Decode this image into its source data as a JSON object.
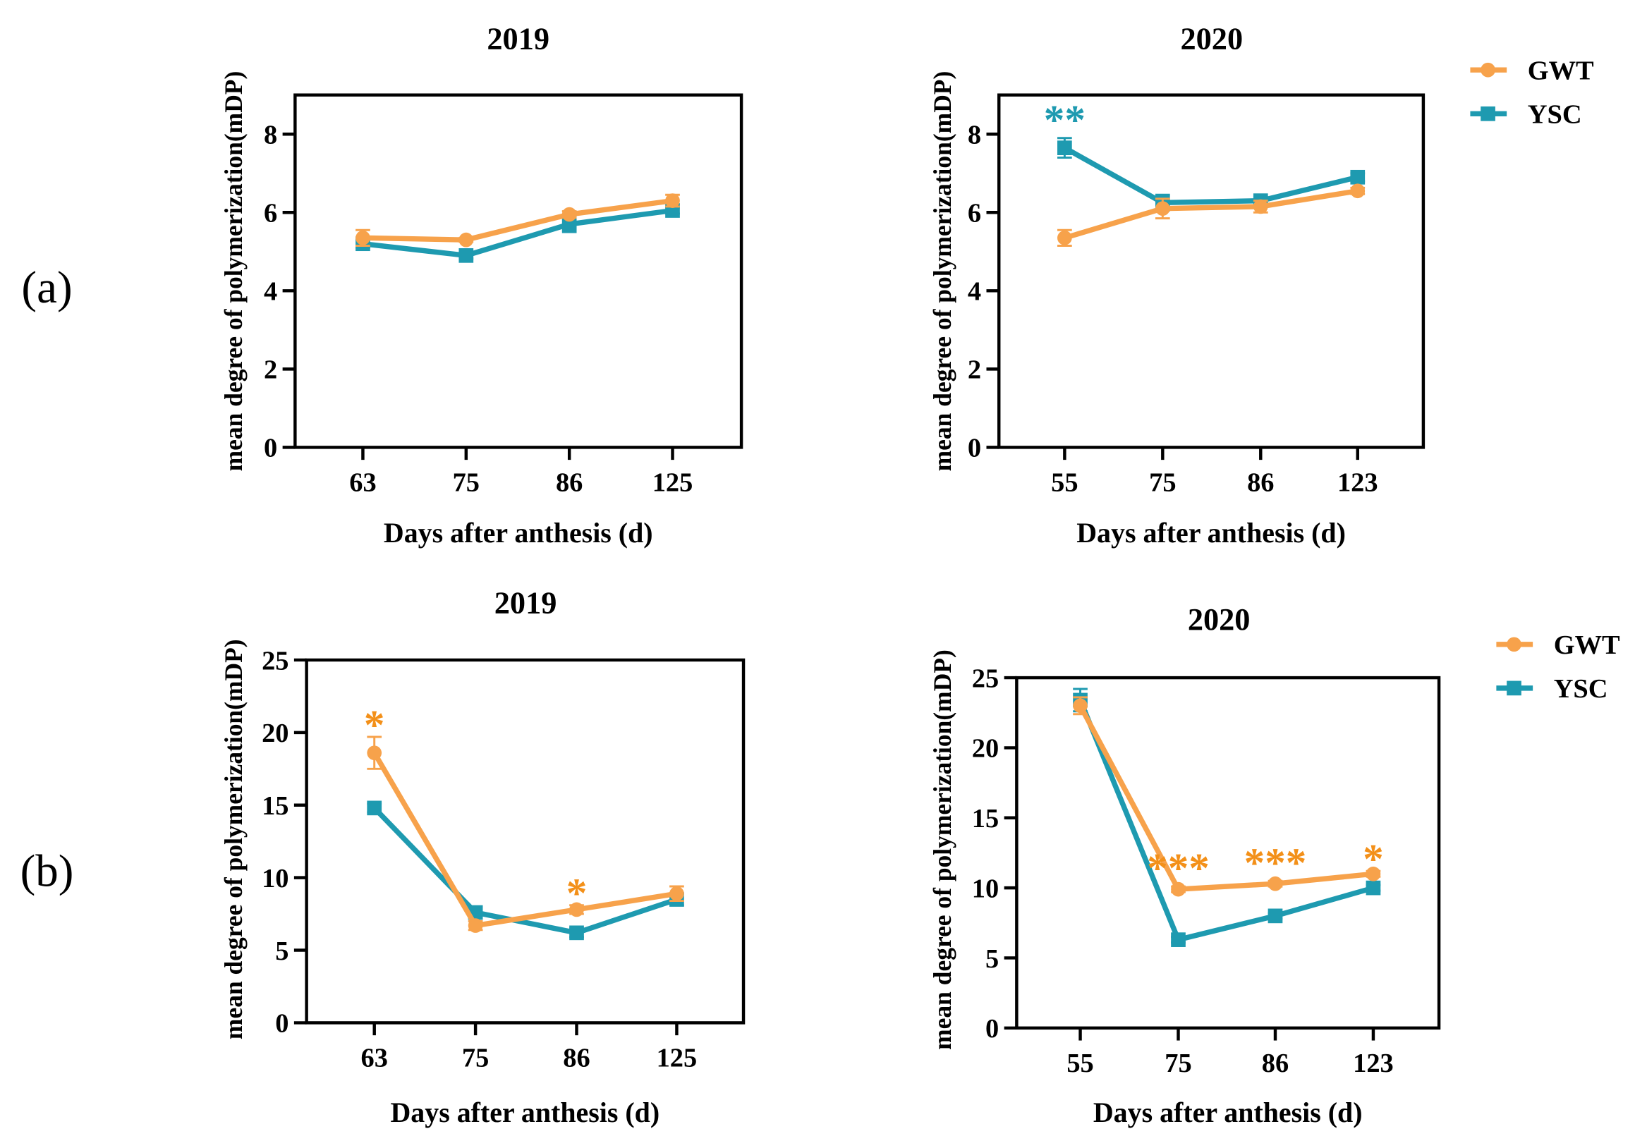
{
  "colors": {
    "GWT": "#F7A24B",
    "YSC": "#1E9AB0",
    "GWT_annotation": "#F39019",
    "YSC_annotation": "#1E9AB0"
  },
  "row_labels": [
    "(a)",
    "(b)"
  ],
  "legend": [
    {
      "name": "GWT",
      "marker": "circle"
    },
    {
      "name": "YSC",
      "marker": "square"
    }
  ],
  "chart_data": [
    {
      "type": "line",
      "panel": "a",
      "title": "2019",
      "xlabel": "Days after anthesis (d)",
      "ylabel": "mean degree of polymerization(mDP)",
      "categories": [
        "63",
        "75",
        "86",
        "125"
      ],
      "ylim": [
        0,
        9
      ],
      "yticks": [
        0,
        2,
        4,
        6,
        8
      ],
      "grid": false,
      "series": [
        {
          "name": "GWT",
          "values": [
            5.35,
            5.3,
            5.95,
            6.3
          ],
          "errors": [
            0.2,
            0.05,
            0.08,
            0.15
          ]
        },
        {
          "name": "YSC",
          "values": [
            5.2,
            4.9,
            5.7,
            6.05
          ],
          "errors": [
            0.1,
            0.08,
            0.2,
            0.08
          ]
        }
      ],
      "annotations": []
    },
    {
      "type": "line",
      "panel": "a",
      "title": "2020",
      "xlabel": "Days after anthesis (d)",
      "ylabel": "mean degree of polymerization(mDP)",
      "categories": [
        "55",
        "75",
        "86",
        "123"
      ],
      "ylim": [
        0,
        9
      ],
      "yticks": [
        0,
        2,
        4,
        6,
        8
      ],
      "grid": false,
      "legend_position": "top-right",
      "series": [
        {
          "name": "GWT",
          "values": [
            5.35,
            6.1,
            6.15,
            6.55
          ],
          "errors": [
            0.2,
            0.25,
            0.15,
            0.08
          ]
        },
        {
          "name": "YSC",
          "values": [
            7.65,
            6.25,
            6.3,
            6.9
          ],
          "errors": [
            0.25,
            0.2,
            0.1,
            0.1
          ]
        }
      ],
      "annotations": [
        {
          "category": "55",
          "text": "**",
          "series": "YSC"
        }
      ]
    },
    {
      "type": "line",
      "panel": "b",
      "title": "2019",
      "xlabel": "Days after anthesis (d)",
      "ylabel": "mean degree of polymerization(mDP)",
      "categories": [
        "63",
        "75",
        "86",
        "125"
      ],
      "ylim": [
        0,
        25
      ],
      "yticks": [
        0,
        5,
        10,
        15,
        20,
        25
      ],
      "grid": false,
      "series": [
        {
          "name": "GWT",
          "values": [
            18.6,
            6.7,
            7.8,
            8.9
          ],
          "errors": [
            1.1,
            0.3,
            0.3,
            0.5
          ]
        },
        {
          "name": "YSC",
          "values": [
            14.8,
            7.6,
            6.2,
            8.5
          ],
          "errors": [
            0.3,
            0.4,
            0.3,
            0.4
          ]
        }
      ],
      "annotations": [
        {
          "category": "63",
          "text": "*",
          "series": "GWT"
        },
        {
          "category": "86",
          "text": "*",
          "series": "GWT"
        }
      ]
    },
    {
      "type": "line",
      "panel": "b",
      "title": "2020",
      "xlabel": "Days after anthesis (d)",
      "ylabel": "mean degree of polymerization(mDP)",
      "categories": [
        "55",
        "75",
        "86",
        "123"
      ],
      "ylim": [
        0,
        25
      ],
      "yticks": [
        0,
        5,
        10,
        15,
        20,
        25
      ],
      "grid": false,
      "legend_position": "top-right",
      "series": [
        {
          "name": "GWT",
          "values": [
            23.0,
            9.9,
            10.3,
            11.0
          ],
          "errors": [
            0.6,
            0.2,
            0.2,
            0.2
          ]
        },
        {
          "name": "YSC",
          "values": [
            23.4,
            6.3,
            8.0,
            10.0
          ],
          "errors": [
            0.8,
            0.2,
            0.2,
            0.2
          ]
        }
      ],
      "annotations": [
        {
          "category": "75",
          "text": "***",
          "series": "GWT"
        },
        {
          "category": "86",
          "text": "***",
          "series": "GWT"
        },
        {
          "category": "123",
          "text": "*",
          "series": "GWT"
        }
      ]
    }
  ]
}
